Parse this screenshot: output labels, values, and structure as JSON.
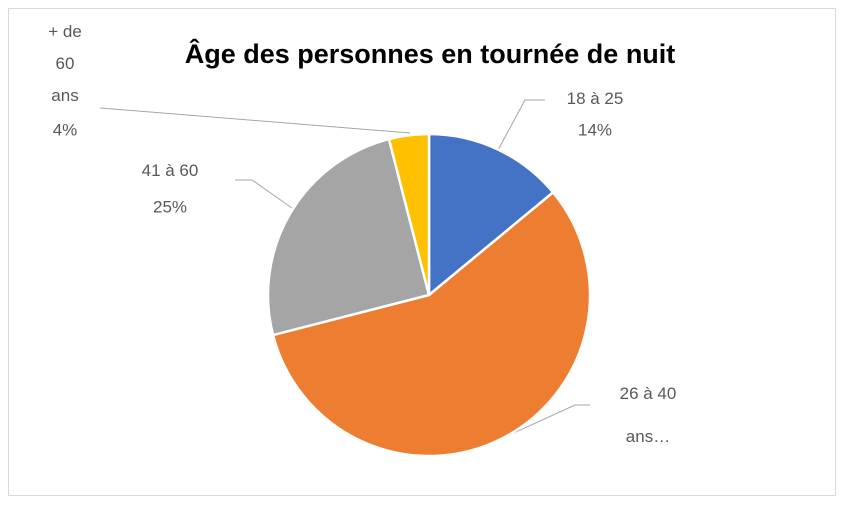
{
  "chart_data": {
    "type": "pie",
    "title": "Âge des personnes en tournée de nuit",
    "categories": [
      "18 à 25 ans",
      "26 à 40 ans…",
      "41 à 60 ans",
      "+ de 60 ans"
    ],
    "values": [
      14,
      57,
      25,
      4
    ],
    "value_labels": [
      "14%",
      null,
      "25%",
      "4%"
    ],
    "colors": [
      "#4472c4",
      "#ed7d31",
      "#a5a5a5",
      "#ffc000"
    ]
  }
}
